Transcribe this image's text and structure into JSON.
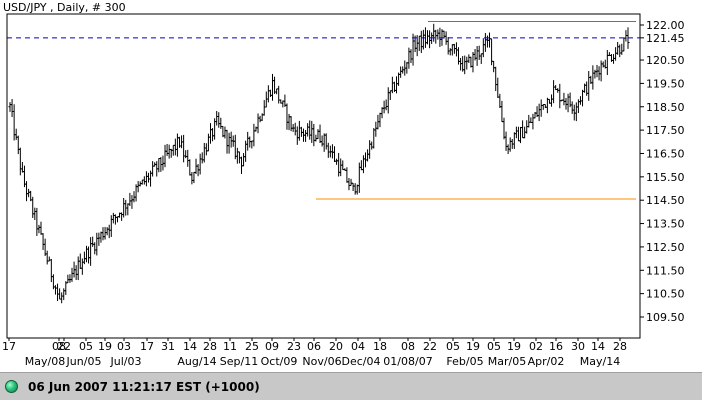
{
  "chart_data": {
    "type": "ohlc",
    "title": "USD/JPY , Daily, # 300",
    "ylim": [
      108.7,
      122.5
    ],
    "y_ticks": [
      "122.00",
      "121.45",
      "120.50",
      "119.50",
      "118.50",
      "117.50",
      "116.50",
      "115.50",
      "114.50",
      "113.50",
      "112.50",
      "111.50",
      "110.50",
      "109.50"
    ],
    "current_price": 121.45,
    "reference_lines": [
      {
        "y": 121.45,
        "style": "dashed",
        "color": "#0000cc"
      },
      {
        "y": 122.15,
        "style": "solid",
        "color": "#2ca02c",
        "from": "22",
        "to": "28"
      },
      {
        "y": 114.55,
        "style": "solid",
        "color": "#ff8c00",
        "from": "06",
        "to": "28"
      }
    ],
    "x_ticks_top": [
      "17",
      "08",
      "22",
      "05",
      "19",
      "03",
      "17",
      "31",
      "14",
      "28",
      "11",
      "25",
      "09",
      "23",
      "06",
      "20",
      "04",
      "18",
      "08",
      "22",
      "05",
      "19",
      "05",
      "19",
      "02",
      "16",
      "30",
      "14",
      "28"
    ],
    "x_ticks_bottom": [
      "May/08",
      "Jun/05",
      "Jul/03",
      "Aug/14",
      "Sep/11",
      "Oct/09",
      "Nov/06",
      "Dec/04",
      "01/08/07",
      "Feb/05",
      "Mar/05",
      "Apr/02",
      "May/14"
    ],
    "path_keypoints": [
      {
        "i": 0,
        "v": 118.5
      },
      {
        "i": 6,
        "v": 115.5
      },
      {
        "i": 24,
        "v": 110.2
      },
      {
        "i": 35,
        "v": 112.0
      },
      {
        "i": 62,
        "v": 115.0
      },
      {
        "i": 82,
        "v": 117.0
      },
      {
        "i": 88,
        "v": 115.5
      },
      {
        "i": 100,
        "v": 117.8
      },
      {
        "i": 112,
        "v": 116.2
      },
      {
        "i": 127,
        "v": 119.5
      },
      {
        "i": 137,
        "v": 117.5
      },
      {
        "i": 151,
        "v": 117.2
      },
      {
        "i": 166,
        "v": 114.9
      },
      {
        "i": 181,
        "v": 118.5
      },
      {
        "i": 196,
        "v": 121.2
      },
      {
        "i": 208,
        "v": 121.6
      },
      {
        "i": 220,
        "v": 120.2
      },
      {
        "i": 232,
        "v": 121.3
      },
      {
        "i": 240,
        "v": 116.8
      },
      {
        "i": 250,
        "v": 117.6
      },
      {
        "i": 263,
        "v": 119.2
      },
      {
        "i": 273,
        "v": 118.5
      },
      {
        "i": 285,
        "v": 120.2
      },
      {
        "i": 299,
        "v": 121.4
      }
    ]
  },
  "status": {
    "timestamp": "06 Jun 2007 11:21:17  EST (+1000)",
    "led_color": "#2ec27e"
  }
}
